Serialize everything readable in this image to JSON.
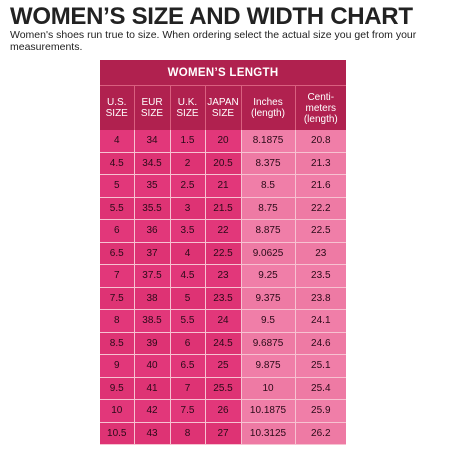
{
  "title": "WOMEN’S SIZE AND WIDTH CHART",
  "subtitle": "Women's shoes run true to size.  When ordering select the actual size you get from your measurements.",
  "table": {
    "header": "WOMEN’S LENGTH",
    "columns": [
      "U.S. SIZE",
      "EUR SIZE",
      "U.K. SIZE",
      "JAPAN SIZE",
      "Inches (length)",
      "Centi-meters (length)"
    ],
    "rows": [
      [
        "4",
        "34",
        "1.5",
        "20",
        "8.1875",
        "20.8"
      ],
      [
        "4.5",
        "34.5",
        "2",
        "20.5",
        "8.375",
        "21.3"
      ],
      [
        "5",
        "35",
        "2.5",
        "21",
        "8.5",
        "21.6"
      ],
      [
        "5.5",
        "35.5",
        "3",
        "21.5",
        "8.75",
        "22.2"
      ],
      [
        "6",
        "36",
        "3.5",
        "22",
        "8.875",
        "22.5"
      ],
      [
        "6.5",
        "37",
        "4",
        "22.5",
        "9.0625",
        "23"
      ],
      [
        "7",
        "37.5",
        "4.5",
        "23",
        "9.25",
        "23.5"
      ],
      [
        "7.5",
        "38",
        "5",
        "23.5",
        "9.375",
        "23.8"
      ],
      [
        "8",
        "38.5",
        "5.5",
        "24",
        "9.5",
        "24.1"
      ],
      [
        "8.5",
        "39",
        "6",
        "24.5",
        "9.6875",
        "24.6"
      ],
      [
        "9",
        "40",
        "6.5",
        "25",
        "9.875",
        "25.1"
      ],
      [
        "9.5",
        "41",
        "7",
        "25.5",
        "10",
        "25.4"
      ],
      [
        "10",
        "42",
        "7.5",
        "26",
        "10.1875",
        "25.9"
      ],
      [
        "10.5",
        "43",
        "8",
        "27",
        "10.3125",
        "26.2"
      ]
    ]
  },
  "colors": {
    "header_bg": "#b0214f",
    "size_cells": "#e2377a",
    "length_cells": "#f07ea8",
    "text": "#222222"
  }
}
